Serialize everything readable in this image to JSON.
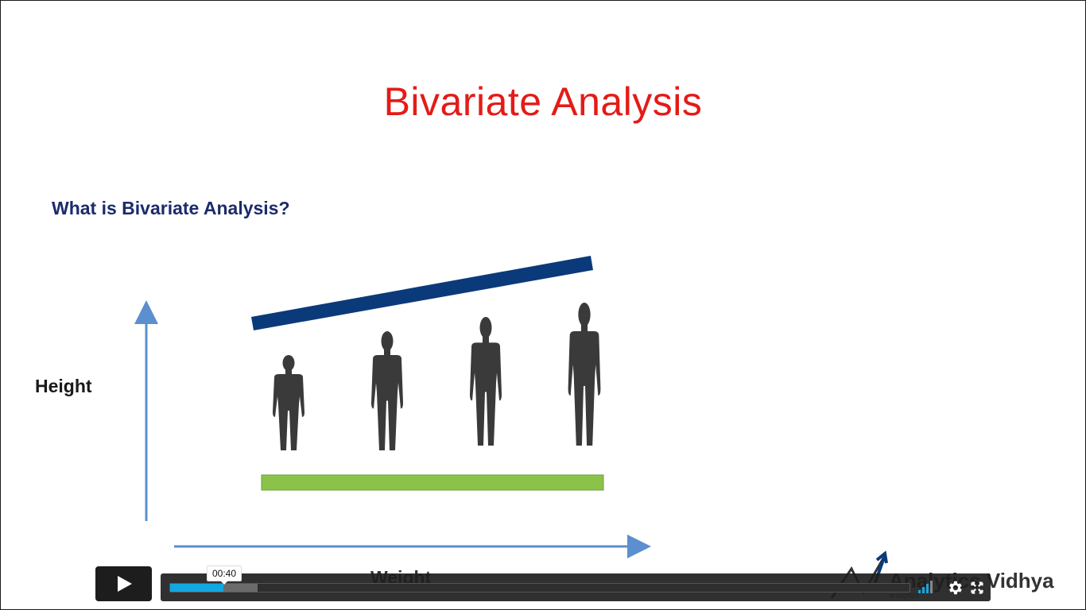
{
  "slide": {
    "title": "Bivariate Analysis",
    "question": "What is Bivariate Analysis?",
    "y_axis_label": "Height",
    "x_axis_label": "Weight",
    "colors": {
      "title": "#e41b17",
      "question": "#1b2b6b",
      "trend_bar": "#0b3a7a",
      "base_bar": "#8bc34a",
      "axis": "#5b8fcf",
      "figure": "#3a3a3a"
    },
    "figures": [
      {
        "name": "person-figure-1",
        "icon": "person-silhouette-icon"
      },
      {
        "name": "person-figure-2",
        "icon": "person-silhouette-icon"
      },
      {
        "name": "person-figure-3",
        "icon": "person-silhouette-icon"
      },
      {
        "name": "person-figure-4",
        "icon": "person-silhouette-icon"
      }
    ]
  },
  "logo": {
    "name": "Analytics Vidhya",
    "tagline": "analytics",
    "icon": "analytics-vidhya-logo-icon"
  },
  "player": {
    "play_icon": "play-icon",
    "hover_time": "00:40",
    "progress_played": 0.072,
    "progress_buffered": 0.118,
    "volume_level": 0.75,
    "settings_icon": "gear-icon",
    "fullscreen_icon": "fullscreen-icon",
    "accent": "#13a7e0"
  }
}
